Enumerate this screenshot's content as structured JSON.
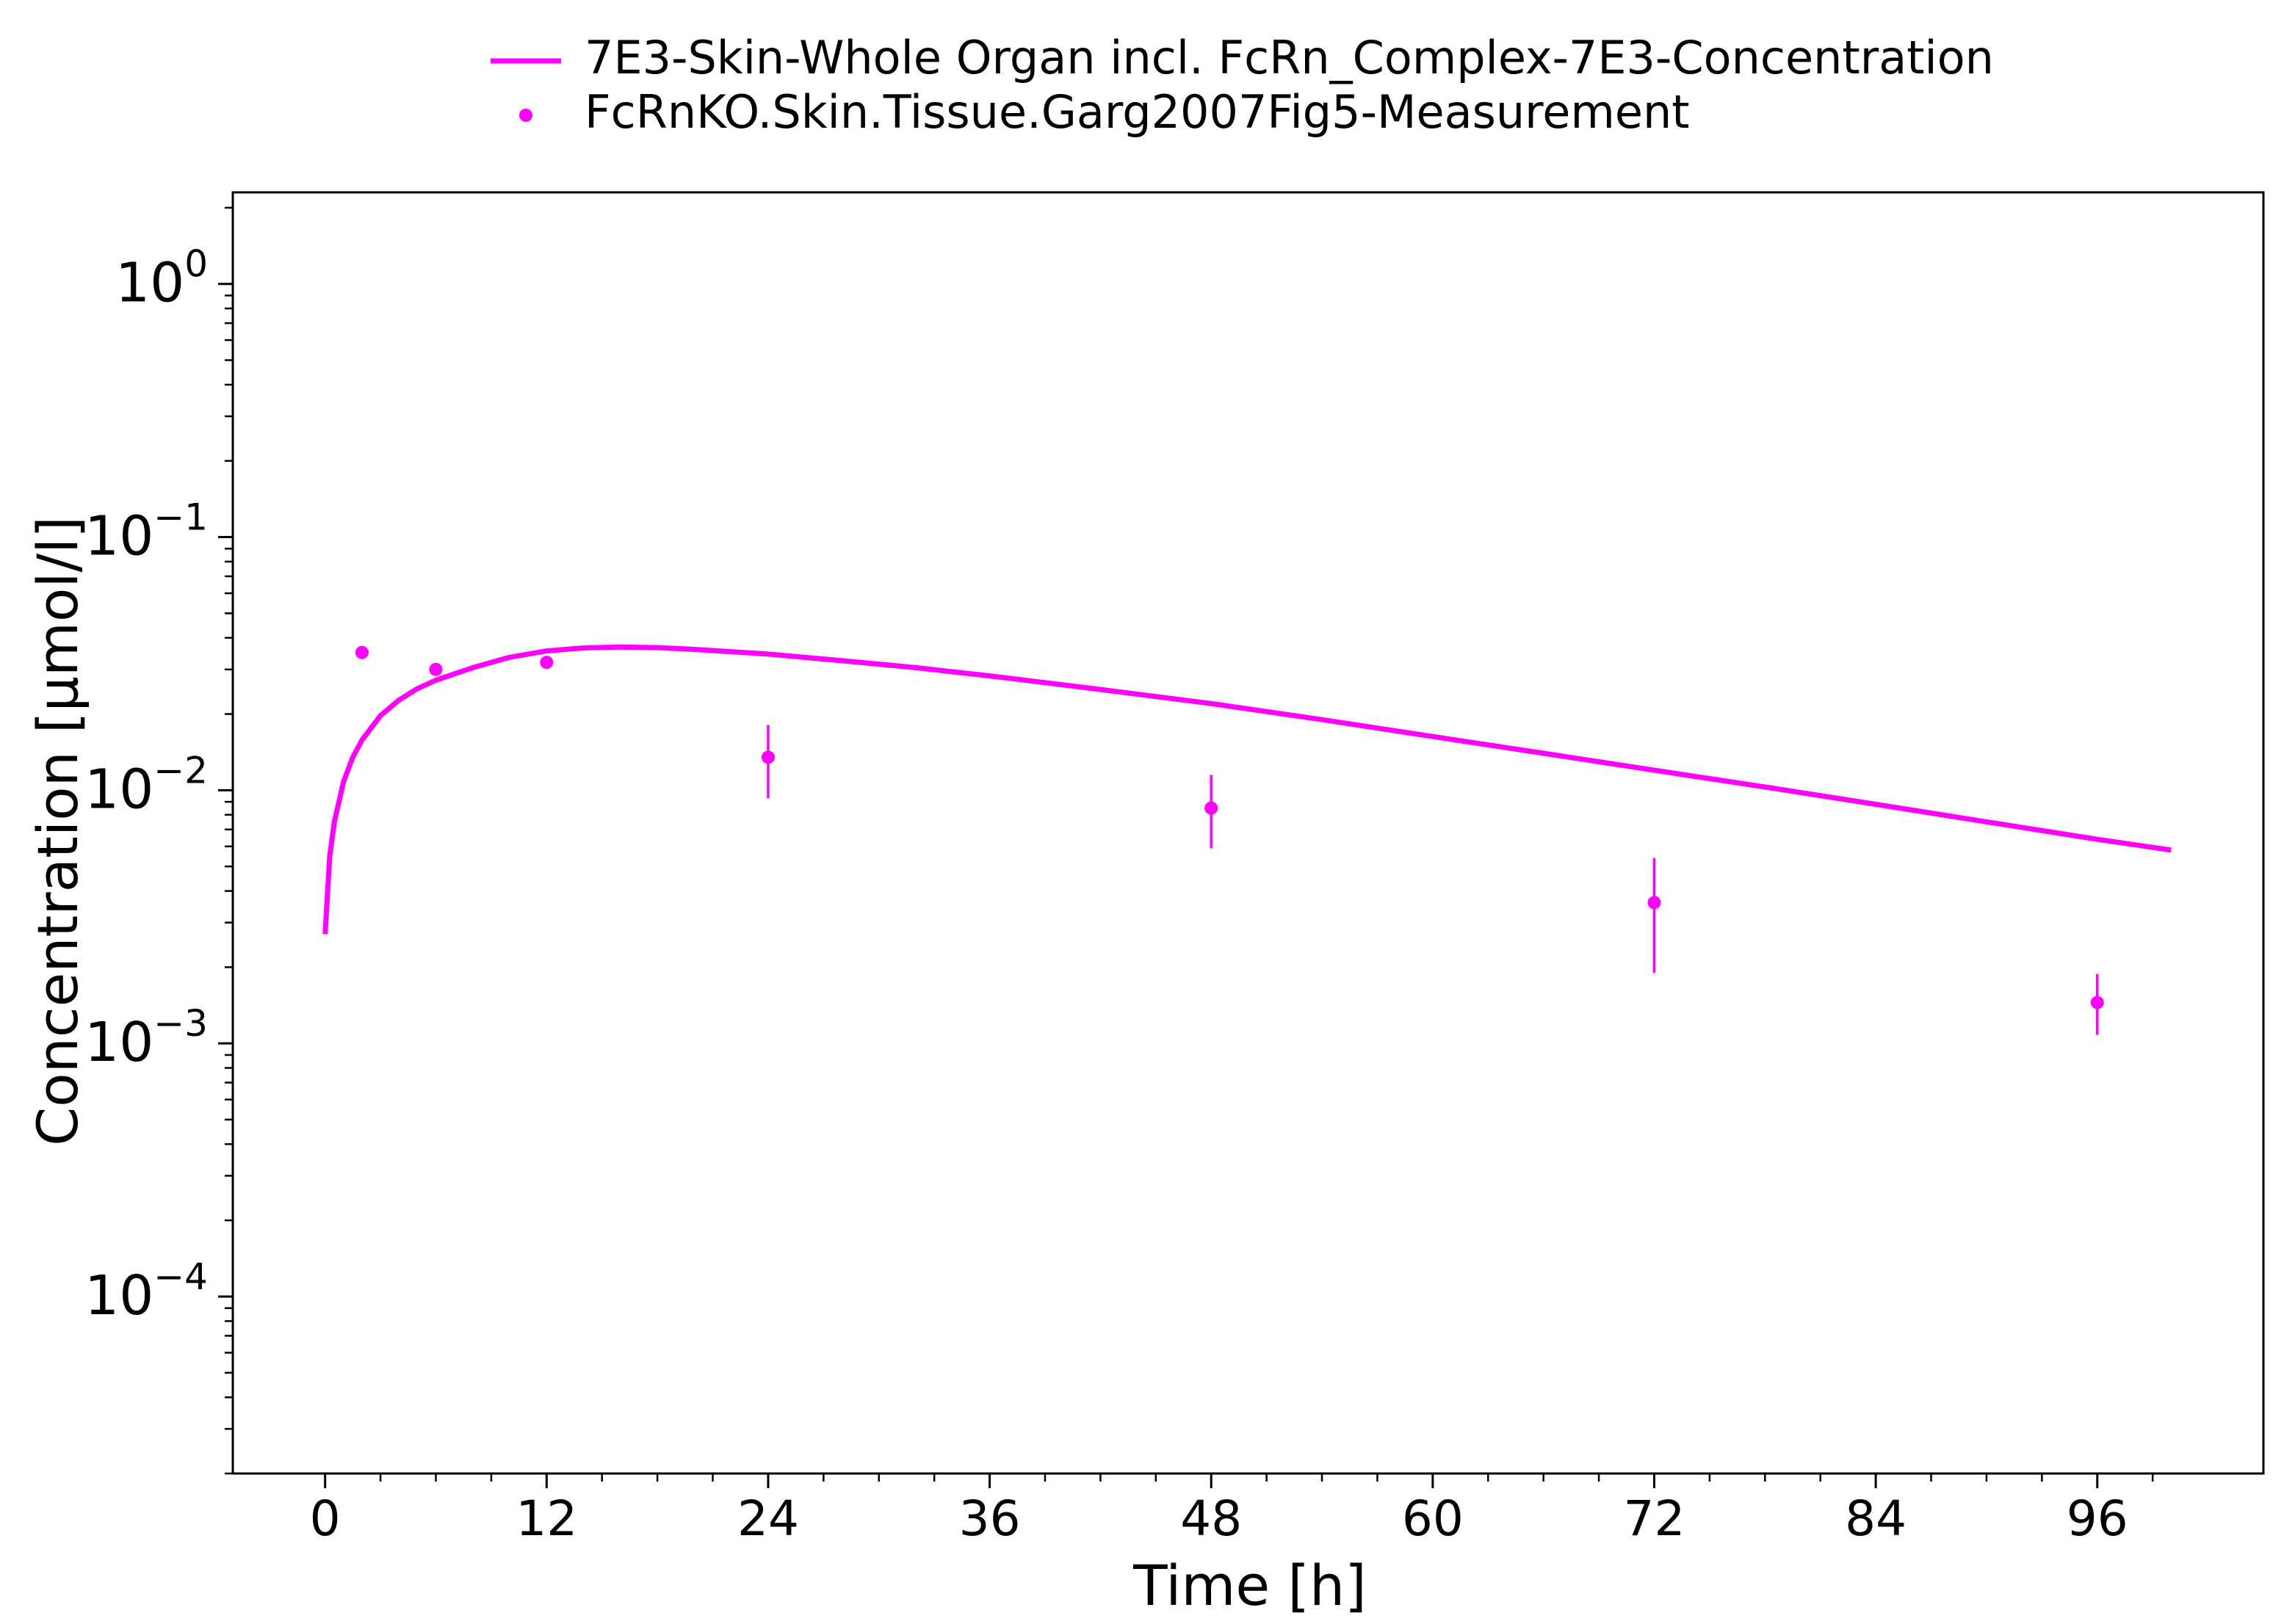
{
  "chart_data": {
    "type": "line",
    "title": "",
    "xlabel": "Time [h]",
    "ylabel": "Concentration [µmol/l]",
    "xlim": [
      -5,
      105
    ],
    "ylim": [
      2e-05,
      2.3
    ],
    "yscale": "log",
    "x_ticks": [
      0,
      12,
      24,
      36,
      48,
      60,
      72,
      84,
      96
    ],
    "x_tick_labels": [
      "0",
      "12",
      "24",
      "36",
      "48",
      "60",
      "72",
      "84",
      "96"
    ],
    "y_ticks": [
      {
        "value": 1,
        "base": "10",
        "exp": "0"
      },
      {
        "value": 0.1,
        "base": "10",
        "exp": "−1"
      },
      {
        "value": 0.01,
        "base": "10",
        "exp": "−2"
      },
      {
        "value": 0.001,
        "base": "10",
        "exp": "−3"
      },
      {
        "value": 0.0001,
        "base": "10",
        "exp": "−4"
      }
    ],
    "grid": false,
    "legend_position": "top-center, outside plot",
    "colors": {
      "series": "#ff00ff",
      "axes": "#000000"
    },
    "series": [
      {
        "name": "7E3-Skin-Whole Organ incl. FcRn_Complex-7E3-Concentration",
        "kind": "line",
        "x": [
          0,
          0.25,
          0.5,
          1,
          1.5,
          2,
          3,
          4,
          5,
          6,
          8,
          10,
          12,
          14,
          16,
          18,
          20,
          24,
          28,
          32,
          36,
          42,
          48,
          54,
          60,
          66,
          72,
          78,
          84,
          90,
          96,
          100
        ],
        "y": [
          0.0027,
          0.0055,
          0.0075,
          0.0108,
          0.0135,
          0.0158,
          0.0197,
          0.0227,
          0.0252,
          0.0272,
          0.0305,
          0.0335,
          0.0355,
          0.0365,
          0.0368,
          0.0366,
          0.036,
          0.0345,
          0.0325,
          0.0305,
          0.0283,
          0.025,
          0.022,
          0.019,
          0.0163,
          0.014,
          0.012,
          0.0103,
          0.0088,
          0.0075,
          0.0064,
          0.0058
        ]
      },
      {
        "name": "FcRnKO.Skin.Tissue.Garg2007Fig5-Measurement",
        "kind": "scatter",
        "x": [
          2,
          6,
          12,
          24,
          48,
          72,
          96
        ],
        "y": [
          0.035,
          0.03,
          0.032,
          0.0135,
          0.0085,
          0.0036,
          0.00145
        ],
        "y_err_low": [
          null,
          null,
          null,
          0.0093,
          0.0059,
          0.0019,
          0.00108
        ],
        "y_err_high": [
          null,
          null,
          null,
          0.0181,
          0.0115,
          0.0054,
          0.00188
        ]
      }
    ]
  }
}
